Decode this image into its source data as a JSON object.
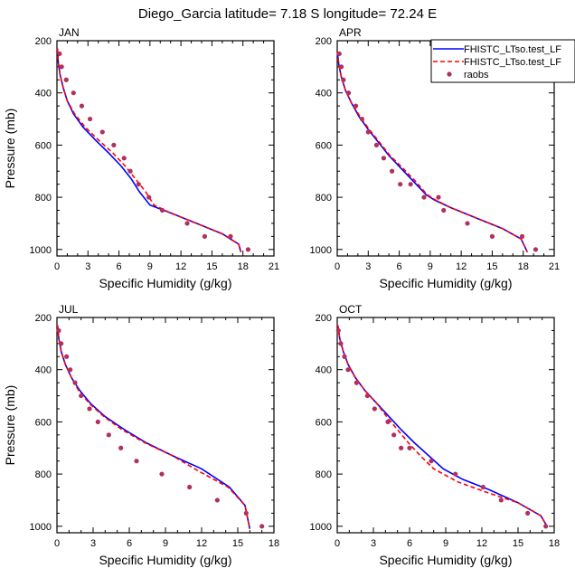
{
  "figure_title": "Diego_Garcia  latitude= 7.18 S longitude= 72.24 E",
  "legend": {
    "entries": [
      "FHISTC_LTso.test_LF",
      "FHISTC_LTso.test_LF",
      "raobs"
    ],
    "colors": [
      "#0000ff",
      "#ff0000",
      "#b03060"
    ]
  },
  "chart_data": [
    {
      "type": "line",
      "panel": "JAN",
      "xlabel": "Specific Humidity (g/kg)",
      "ylabel": "Pressure (mb)",
      "xlim": [
        0,
        21
      ],
      "ylim": [
        1025,
        200
      ],
      "xticks": [
        0,
        3,
        6,
        9,
        12,
        15,
        18,
        21
      ],
      "yticks": [
        200,
        400,
        600,
        800,
        1000
      ],
      "series": [
        {
          "name": "FHISTC_LTso.test_LF",
          "color": "#0000ff",
          "style": "solid",
          "x": [
            0.05,
            0.12,
            0.3,
            0.6,
            1.0,
            1.6,
            2.5,
            3.7,
            5.0,
            6.2,
            7.2,
            8.0,
            9.0,
            11.0,
            13.5,
            16.0,
            17.6,
            17.8
          ],
          "y": [
            230,
            280,
            330,
            380,
            430,
            480,
            530,
            580,
            630,
            680,
            730,
            780,
            830,
            860,
            900,
            940,
            980,
            1010
          ]
        },
        {
          "name": "FHISTC_LTso.test_LF",
          "color": "#ff0000",
          "style": "dashed",
          "x": [
            0.05,
            0.12,
            0.3,
            0.6,
            1.0,
            1.7,
            2.7,
            4.0,
            5.4,
            6.6,
            7.6,
            8.6,
            9.4,
            11.0,
            13.5,
            16.0,
            17.6,
            17.8
          ],
          "y": [
            230,
            280,
            330,
            380,
            430,
            480,
            530,
            580,
            630,
            680,
            730,
            780,
            830,
            860,
            900,
            940,
            980,
            1010
          ]
        }
      ],
      "points": {
        "name": "raobs",
        "color": "#b03060",
        "x": [
          0.25,
          0.45,
          0.9,
          1.6,
          2.4,
          3.2,
          4.4,
          5.5,
          6.5,
          7.1,
          7.9,
          8.9,
          10.2,
          12.6,
          14.3,
          16.8,
          18.5
        ],
        "y": [
          250,
          300,
          350,
          400,
          450,
          500,
          550,
          600,
          650,
          700,
          750,
          800,
          850,
          900,
          950,
          950,
          1000
        ]
      }
    },
    {
      "type": "line",
      "panel": "APR",
      "xlabel": "Specific Humidity (g/kg)",
      "ylabel": "",
      "xlim": [
        0,
        21
      ],
      "ylim": [
        1025,
        200
      ],
      "xticks": [
        0,
        3,
        6,
        9,
        12,
        15,
        18,
        21
      ],
      "yticks": [
        200,
        400,
        600,
        800,
        1000
      ],
      "series": [
        {
          "name": "FHISTC_LTso.test_LF",
          "color": "#0000ff",
          "style": "solid",
          "x": [
            0.0,
            0.15,
            0.4,
            0.8,
            1.4,
            2.1,
            3.0,
            4.0,
            5.0,
            6.2,
            7.4,
            8.6,
            9.4,
            11.0,
            13.5,
            16.0,
            17.8,
            18.4
          ],
          "y": [
            240,
            290,
            340,
            390,
            440,
            490,
            540,
            590,
            640,
            690,
            740,
            790,
            810,
            840,
            880,
            920,
            960,
            1010
          ]
        },
        {
          "name": "FHISTC_LTso.test_LF",
          "color": "#ff0000",
          "style": "dashed",
          "x": [
            0.0,
            0.15,
            0.4,
            0.8,
            1.4,
            2.2,
            3.1,
            4.1,
            5.1,
            6.4,
            7.6,
            8.7,
            9.5,
            11.0,
            13.5,
            16.0,
            17.8,
            18.4
          ],
          "y": [
            240,
            290,
            340,
            390,
            440,
            490,
            540,
            590,
            640,
            690,
            740,
            790,
            810,
            840,
            880,
            920,
            960,
            1010
          ]
        }
      ],
      "points": {
        "name": "raobs",
        "color": "#b03060",
        "x": [
          0.2,
          0.4,
          0.6,
          1.1,
          1.8,
          2.4,
          3.0,
          3.8,
          4.5,
          5.3,
          6.1,
          7.1,
          8.4,
          9.8,
          10.3,
          12.6,
          15.0,
          17.9,
          19.2
        ],
        "y": [
          250,
          300,
          350,
          400,
          450,
          500,
          550,
          600,
          650,
          700,
          750,
          750,
          800,
          800,
          850,
          900,
          950,
          950,
          1000
        ]
      }
    },
    {
      "type": "line",
      "panel": "JUL",
      "xlabel": "Specific Humidity (g/kg)",
      "ylabel": "Pressure (mb)",
      "xlim": [
        0,
        18
      ],
      "ylim": [
        1025,
        200
      ],
      "xticks": [
        0,
        3,
        6,
        9,
        12,
        15,
        18
      ],
      "yticks": [
        200,
        400,
        600,
        800,
        1000
      ],
      "series": [
        {
          "name": "FHISTC_LTso.test_LF",
          "color": "#0000ff",
          "style": "solid",
          "x": [
            0.05,
            0.15,
            0.35,
            0.7,
            1.2,
            1.9,
            2.8,
            4.0,
            5.6,
            7.4,
            9.6,
            12.0,
            14.3,
            15.6,
            16.0
          ],
          "y": [
            230,
            280,
            330,
            380,
            430,
            480,
            530,
            580,
            630,
            680,
            730,
            780,
            850,
            920,
            1010
          ]
        },
        {
          "name": "FHISTC_LTso.test_LF",
          "color": "#ff0000",
          "style": "dashed",
          "x": [
            0.05,
            0.15,
            0.35,
            0.7,
            1.2,
            1.8,
            2.7,
            3.9,
            5.4,
            7.3,
            9.6,
            11.8,
            14.2,
            15.6,
            16.0
          ],
          "y": [
            230,
            280,
            330,
            380,
            430,
            480,
            530,
            580,
            630,
            680,
            730,
            790,
            850,
            920,
            1010
          ]
        }
      ],
      "points": {
        "name": "raobs",
        "color": "#b03060",
        "x": [
          0.15,
          0.35,
          0.8,
          1.1,
          1.5,
          2.0,
          2.7,
          3.4,
          4.3,
          5.3,
          6.6,
          8.7,
          11.0,
          13.3,
          15.7,
          17.0
        ],
        "y": [
          250,
          300,
          350,
          400,
          450,
          500,
          550,
          600,
          650,
          700,
          750,
          800,
          850,
          900,
          950,
          1000
        ]
      }
    },
    {
      "type": "line",
      "panel": "OCT",
      "xlabel": "Specific Humidity (g/kg)",
      "ylabel": "",
      "xlim": [
        0,
        18
      ],
      "ylim": [
        1025,
        200
      ],
      "xticks": [
        0,
        3,
        6,
        9,
        12,
        15,
        18
      ],
      "yticks": [
        200,
        400,
        600,
        800,
        1000
      ],
      "series": [
        {
          "name": "FHISTC_LTso.test_LF",
          "color": "#0000ff",
          "style": "solid",
          "x": [
            0.05,
            0.2,
            0.5,
            0.9,
            1.5,
            2.3,
            3.3,
            4.3,
            5.3,
            6.4,
            7.6,
            8.8,
            10.4,
            12.6,
            15.0,
            16.9,
            17.4
          ],
          "y": [
            230,
            280,
            330,
            380,
            430,
            480,
            530,
            580,
            630,
            680,
            730,
            780,
            820,
            860,
            910,
            960,
            1000
          ]
        },
        {
          "name": "FHISTC_LTso.test_LF",
          "color": "#ff0000",
          "style": "dashed",
          "x": [
            0.05,
            0.2,
            0.5,
            0.9,
            1.5,
            2.3,
            3.3,
            4.1,
            5.0,
            5.9,
            6.9,
            8.0,
            10.0,
            12.4,
            15.0,
            16.9,
            17.4
          ],
          "y": [
            230,
            280,
            330,
            380,
            430,
            480,
            530,
            580,
            630,
            680,
            730,
            780,
            830,
            870,
            910,
            960,
            1000
          ]
        }
      ],
      "points": {
        "name": "raobs",
        "color": "#b03060",
        "x": [
          0.1,
          0.3,
          0.6,
          0.9,
          1.6,
          2.5,
          3.1,
          4.2,
          4.7,
          5.3,
          6.0,
          7.8,
          9.8,
          12.1,
          13.6,
          15.8,
          17.3
        ],
        "y": [
          250,
          300,
          350,
          400,
          450,
          500,
          550,
          600,
          650,
          700,
          700,
          750,
          800,
          850,
          900,
          950,
          1000
        ]
      }
    }
  ]
}
